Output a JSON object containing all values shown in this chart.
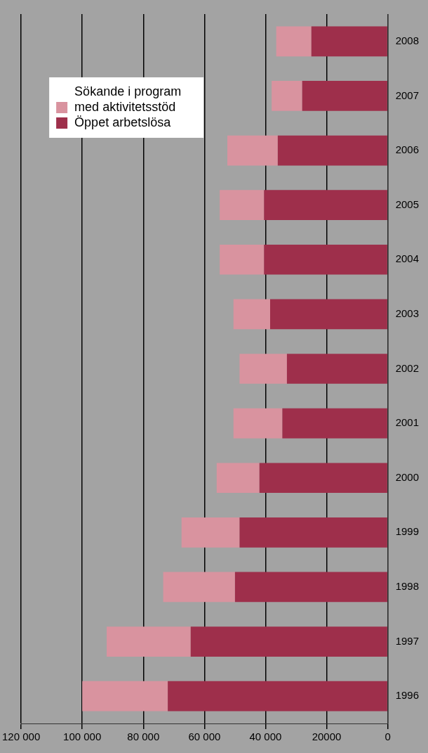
{
  "chart_data": {
    "type": "bar",
    "orientation": "horizontal",
    "stacked": true,
    "categories": [
      "2008",
      "2007",
      "2006",
      "2005",
      "2004",
      "2003",
      "2002",
      "2001",
      "2000",
      "1999",
      "1998",
      "1997",
      "1996"
    ],
    "series": [
      {
        "name": "Öppet arbetslösa",
        "color": "#9e2f4b",
        "values": [
          25000,
          28000,
          36000,
          40500,
          40500,
          38500,
          33000,
          34500,
          42000,
          48500,
          50000,
          64500,
          72000
        ]
      },
      {
        "name": "Sökande i program med aktivitetsstöd",
        "color": "#d9939f",
        "values": [
          11500,
          10000,
          16500,
          14500,
          14500,
          12000,
          15500,
          16000,
          14000,
          19000,
          23500,
          27500,
          28000
        ]
      }
    ],
    "xlim": [
      120000,
      0
    ],
    "xticks": [
      {
        "value": 120000,
        "label": "120 000"
      },
      {
        "value": 100000,
        "label": "100 000"
      },
      {
        "value": 80000,
        "label": "80 000"
      },
      {
        "value": 60000,
        "label": "60 000"
      },
      {
        "value": 40000,
        "label": "40 000"
      },
      {
        "value": 20000,
        "label": "20000"
      },
      0
    ],
    "grid": "x",
    "legend": "top left"
  }
}
